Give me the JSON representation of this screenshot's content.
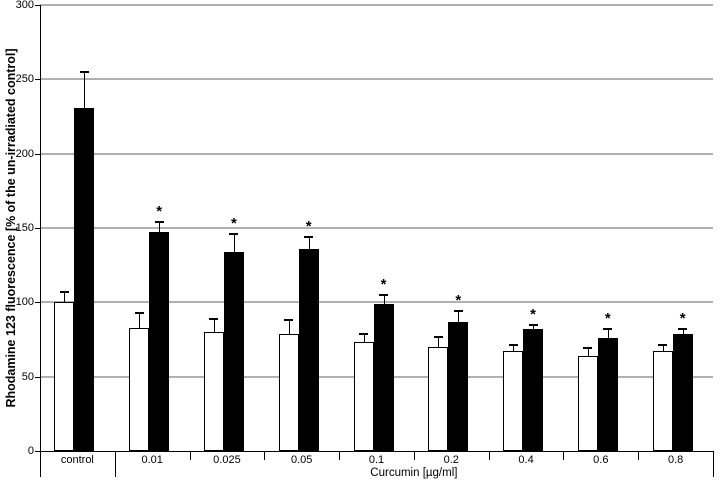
{
  "chart_data": {
    "type": "bar",
    "title": "",
    "ylabel": "Rhodamine 123 fluorescence [% of the un-irradiated control]",
    "xlabel": "Curcumin [µg/ml]",
    "xlabel_applies_to": [
      "0.01",
      "0.025",
      "0.05",
      "0.1",
      "0.2",
      "0.4",
      "0.6",
      "0.8"
    ],
    "categories": [
      "control",
      "0.01",
      "0.025",
      "0.05",
      "0.1",
      "0.2",
      "0.4",
      "0.6",
      "0.8"
    ],
    "series": [
      {
        "name": "white-bars",
        "fill": "#ffffff",
        "values": [
          100,
          83,
          80,
          79,
          73,
          70,
          67,
          64,
          67
        ],
        "errors": [
          7,
          10,
          9,
          9,
          6,
          7,
          4,
          5,
          4
        ],
        "significance": [
          "",
          "",
          "",
          "",
          "",
          "",
          "",
          "",
          ""
        ]
      },
      {
        "name": "black-bars",
        "fill": "#000000",
        "values": [
          231,
          147,
          134,
          136,
          99,
          87,
          82,
          76,
          79
        ],
        "errors": [
          24,
          7,
          12,
          8,
          6,
          7,
          3,
          6,
          3
        ],
        "significance": [
          "",
          "*",
          "*",
          "*",
          "*",
          "*",
          "*",
          "*",
          "*"
        ]
      }
    ],
    "ylim": [
      0,
      300
    ],
    "yticks": [
      0,
      50,
      100,
      150,
      200,
      250,
      300
    ],
    "grid": "horizontal",
    "gridline_color": "#b0b0b0",
    "axis_color": "#000000",
    "legend": "none"
  }
}
